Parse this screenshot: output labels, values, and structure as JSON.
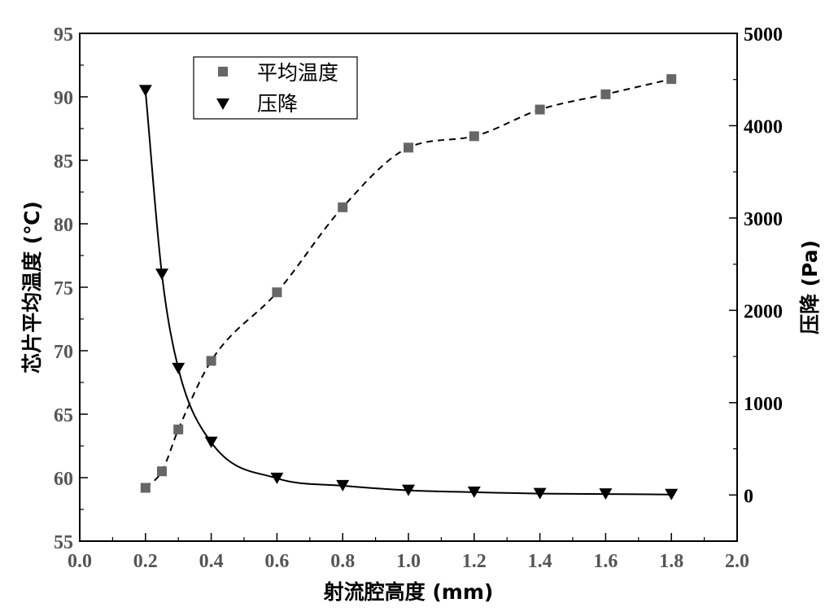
{
  "chart_data": {
    "type": "scatter",
    "x_label": "射流腔高度 (mm)",
    "y_left_label": "芯片平均温度 (℃)",
    "y_right_label": "压降 (Pa)",
    "x_range": [
      0.0,
      2.0
    ],
    "y_left_range": [
      55,
      95
    ],
    "y_right_range": [
      -500,
      5000
    ],
    "x_ticks": [
      "0.0",
      "0.2",
      "0.4",
      "0.6",
      "0.8",
      "1.0",
      "1.2",
      "1.4",
      "1.6",
      "1.8",
      "2.0"
    ],
    "y_left_ticks": [
      "55",
      "60",
      "65",
      "70",
      "75",
      "80",
      "85",
      "90",
      "95"
    ],
    "y_right_ticks": [
      "0",
      "1000",
      "2000",
      "3000",
      "4000",
      "5000"
    ],
    "grid": false,
    "legend_position": "top-left",
    "series": [
      {
        "name": "平均温度",
        "axis": "left",
        "marker": "square",
        "color": "#666666",
        "fit": "dashed",
        "x": [
          0.2,
          0.25,
          0.3,
          0.4,
          0.6,
          0.8,
          1.0,
          1.2,
          1.4,
          1.6,
          1.8
        ],
        "y": [
          59.2,
          60.5,
          63.8,
          69.2,
          74.6,
          81.3,
          86.0,
          86.9,
          89.0,
          90.2,
          91.4
        ]
      },
      {
        "name": "压降",
        "axis": "right",
        "marker": "triangle-down",
        "color": "#000000",
        "fit": "solid",
        "x": [
          0.2,
          0.25,
          0.3,
          0.4,
          0.6,
          0.8,
          1.0,
          1.2,
          1.4,
          1.6,
          1.8
        ],
        "y": [
          4380,
          2390,
          1370,
          570,
          180,
          100,
          50,
          30,
          15,
          10,
          5
        ]
      }
    ]
  }
}
